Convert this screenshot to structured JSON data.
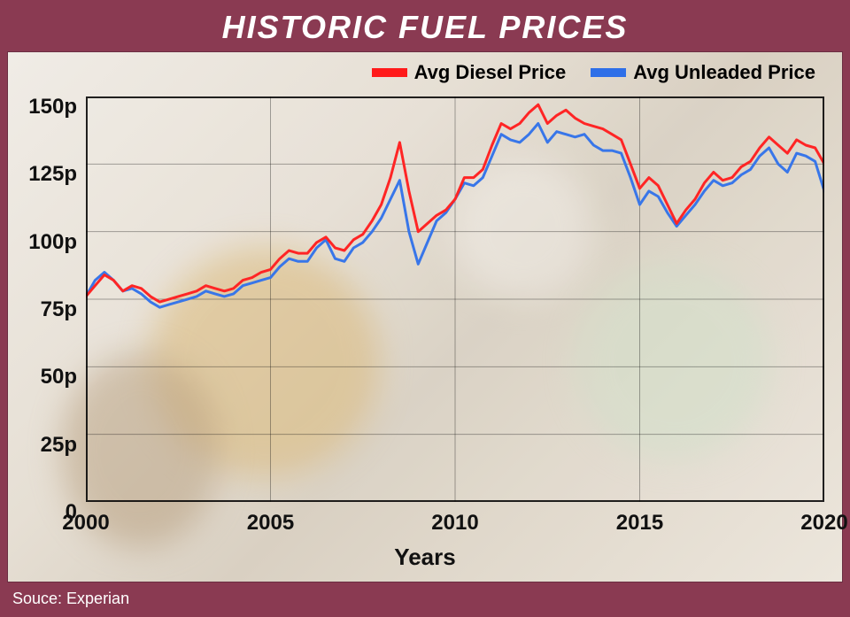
{
  "title": "HISTORIC FUEL PRICES",
  "source_label": "Souce: Experian",
  "x_axis_label": "Years",
  "colors": {
    "header_bg": "#8a3a52",
    "panel_bg": "#e8e0d4",
    "grid": "rgba(0,0,0,0.35)",
    "border": "#000000",
    "diesel": "#ff1a1a",
    "unleaded": "#2e6fe8",
    "text": "#111111"
  },
  "legend": {
    "diesel": "Avg Diesel Price",
    "unleaded": "Avg Unleaded Price"
  },
  "chart": {
    "type": "line",
    "x_domain": [
      2000,
      2020
    ],
    "x_ticks": [
      2000,
      2005,
      2010,
      2015,
      2020
    ],
    "y_domain": [
      0,
      150
    ],
    "y_ticks": [
      0,
      25,
      50,
      75,
      100,
      125,
      150
    ],
    "y_tick_labels": [
      "0",
      "25p",
      "50p",
      "75p",
      "100p",
      "125p",
      "150p"
    ],
    "line_width": 3,
    "series": {
      "diesel": [
        [
          2000.0,
          76
        ],
        [
          2000.25,
          80
        ],
        [
          2000.5,
          84
        ],
        [
          2000.75,
          82
        ],
        [
          2001.0,
          78
        ],
        [
          2001.25,
          80
        ],
        [
          2001.5,
          79
        ],
        [
          2001.75,
          76
        ],
        [
          2002.0,
          74
        ],
        [
          2002.25,
          75
        ],
        [
          2002.5,
          76
        ],
        [
          2002.75,
          77
        ],
        [
          2003.0,
          78
        ],
        [
          2003.25,
          80
        ],
        [
          2003.5,
          79
        ],
        [
          2003.75,
          78
        ],
        [
          2004.0,
          79
        ],
        [
          2004.25,
          82
        ],
        [
          2004.5,
          83
        ],
        [
          2004.75,
          85
        ],
        [
          2005.0,
          86
        ],
        [
          2005.25,
          90
        ],
        [
          2005.5,
          93
        ],
        [
          2005.75,
          92
        ],
        [
          2006.0,
          92
        ],
        [
          2006.25,
          96
        ],
        [
          2006.5,
          98
        ],
        [
          2006.75,
          94
        ],
        [
          2007.0,
          93
        ],
        [
          2007.25,
          97
        ],
        [
          2007.5,
          99
        ],
        [
          2007.75,
          104
        ],
        [
          2008.0,
          110
        ],
        [
          2008.25,
          120
        ],
        [
          2008.5,
          133
        ],
        [
          2008.75,
          115
        ],
        [
          2009.0,
          100
        ],
        [
          2009.25,
          103
        ],
        [
          2009.5,
          106
        ],
        [
          2009.75,
          108
        ],
        [
          2010.0,
          112
        ],
        [
          2010.25,
          120
        ],
        [
          2010.5,
          120
        ],
        [
          2010.75,
          123
        ],
        [
          2011.0,
          132
        ],
        [
          2011.25,
          140
        ],
        [
          2011.5,
          138
        ],
        [
          2011.75,
          140
        ],
        [
          2012.0,
          144
        ],
        [
          2012.25,
          147
        ],
        [
          2012.5,
          140
        ],
        [
          2012.75,
          143
        ],
        [
          2013.0,
          145
        ],
        [
          2013.25,
          142
        ],
        [
          2013.5,
          140
        ],
        [
          2013.75,
          139
        ],
        [
          2014.0,
          138
        ],
        [
          2014.25,
          136
        ],
        [
          2014.5,
          134
        ],
        [
          2014.75,
          125
        ],
        [
          2015.0,
          116
        ],
        [
          2015.25,
          120
        ],
        [
          2015.5,
          117
        ],
        [
          2015.75,
          110
        ],
        [
          2016.0,
          103
        ],
        [
          2016.25,
          108
        ],
        [
          2016.5,
          112
        ],
        [
          2016.75,
          118
        ],
        [
          2017.0,
          122
        ],
        [
          2017.25,
          119
        ],
        [
          2017.5,
          120
        ],
        [
          2017.75,
          124
        ],
        [
          2018.0,
          126
        ],
        [
          2018.25,
          131
        ],
        [
          2018.5,
          135
        ],
        [
          2018.75,
          132
        ],
        [
          2019.0,
          129
        ],
        [
          2019.25,
          134
        ],
        [
          2019.5,
          132
        ],
        [
          2019.75,
          131
        ],
        [
          2020.0,
          125
        ]
      ],
      "unleaded": [
        [
          2000.0,
          76
        ],
        [
          2000.25,
          82
        ],
        [
          2000.5,
          85
        ],
        [
          2000.75,
          82
        ],
        [
          2001.0,
          78
        ],
        [
          2001.25,
          79
        ],
        [
          2001.5,
          77
        ],
        [
          2001.75,
          74
        ],
        [
          2002.0,
          72
        ],
        [
          2002.25,
          73
        ],
        [
          2002.5,
          74
        ],
        [
          2002.75,
          75
        ],
        [
          2003.0,
          76
        ],
        [
          2003.25,
          78
        ],
        [
          2003.5,
          77
        ],
        [
          2003.75,
          76
        ],
        [
          2004.0,
          77
        ],
        [
          2004.25,
          80
        ],
        [
          2004.5,
          81
        ],
        [
          2004.75,
          82
        ],
        [
          2005.0,
          83
        ],
        [
          2005.25,
          87
        ],
        [
          2005.5,
          90
        ],
        [
          2005.75,
          89
        ],
        [
          2006.0,
          89
        ],
        [
          2006.25,
          94
        ],
        [
          2006.5,
          97
        ],
        [
          2006.75,
          90
        ],
        [
          2007.0,
          89
        ],
        [
          2007.25,
          94
        ],
        [
          2007.5,
          96
        ],
        [
          2007.75,
          100
        ],
        [
          2008.0,
          105
        ],
        [
          2008.25,
          112
        ],
        [
          2008.5,
          119
        ],
        [
          2008.75,
          100
        ],
        [
          2009.0,
          88
        ],
        [
          2009.25,
          96
        ],
        [
          2009.5,
          104
        ],
        [
          2009.75,
          107
        ],
        [
          2010.0,
          112
        ],
        [
          2010.25,
          118
        ],
        [
          2010.5,
          117
        ],
        [
          2010.75,
          120
        ],
        [
          2011.0,
          128
        ],
        [
          2011.25,
          136
        ],
        [
          2011.5,
          134
        ],
        [
          2011.75,
          133
        ],
        [
          2012.0,
          136
        ],
        [
          2012.25,
          140
        ],
        [
          2012.5,
          133
        ],
        [
          2012.75,
          137
        ],
        [
          2013.0,
          136
        ],
        [
          2013.25,
          135
        ],
        [
          2013.5,
          136
        ],
        [
          2013.75,
          132
        ],
        [
          2014.0,
          130
        ],
        [
          2014.25,
          130
        ],
        [
          2014.5,
          129
        ],
        [
          2014.75,
          120
        ],
        [
          2015.0,
          110
        ],
        [
          2015.25,
          115
        ],
        [
          2015.5,
          113
        ],
        [
          2015.75,
          107
        ],
        [
          2016.0,
          102
        ],
        [
          2016.25,
          106
        ],
        [
          2016.5,
          110
        ],
        [
          2016.75,
          115
        ],
        [
          2017.0,
          119
        ],
        [
          2017.25,
          117
        ],
        [
          2017.5,
          118
        ],
        [
          2017.75,
          121
        ],
        [
          2018.0,
          123
        ],
        [
          2018.25,
          128
        ],
        [
          2018.5,
          131
        ],
        [
          2018.75,
          125
        ],
        [
          2019.0,
          122
        ],
        [
          2019.25,
          129
        ],
        [
          2019.5,
          128
        ],
        [
          2019.75,
          126
        ],
        [
          2020.0,
          115
        ]
      ]
    }
  }
}
